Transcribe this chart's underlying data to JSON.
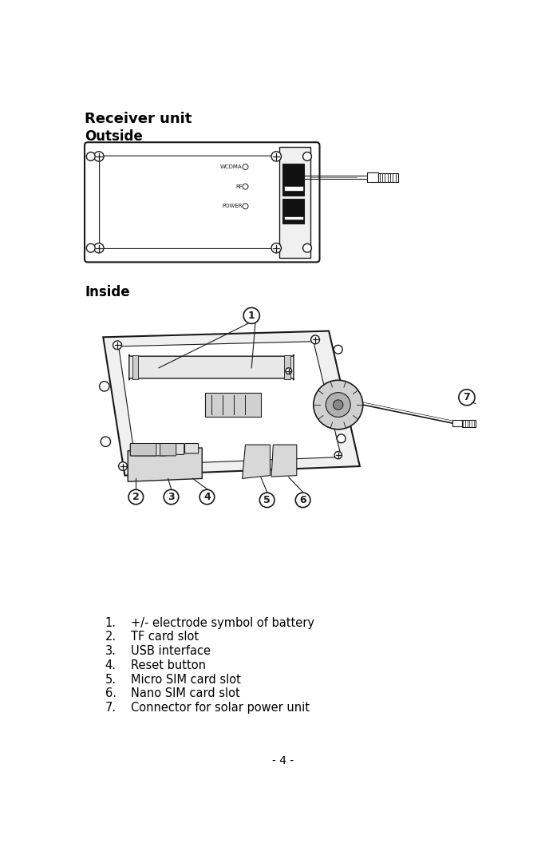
{
  "title": "Receiver unit",
  "section1": "Outside",
  "section2": "Inside",
  "list_items": [
    [
      "1.",
      "+/- electrode symbol of battery"
    ],
    [
      "2.",
      "TF card slot"
    ],
    [
      "3.",
      "USB interface"
    ],
    [
      "4.",
      "Reset button"
    ],
    [
      "5.",
      "Micro SIM card slot"
    ],
    [
      "6.",
      "Nano SIM card slot"
    ],
    [
      "7.",
      "Connector for solar power unit"
    ]
  ],
  "page_number": "- 4 -",
  "bg_color": "#ffffff",
  "text_color": "#000000",
  "title_fontsize": 13,
  "section_fontsize": 12,
  "body_fontsize": 10.5,
  "page_num_fontsize": 10
}
